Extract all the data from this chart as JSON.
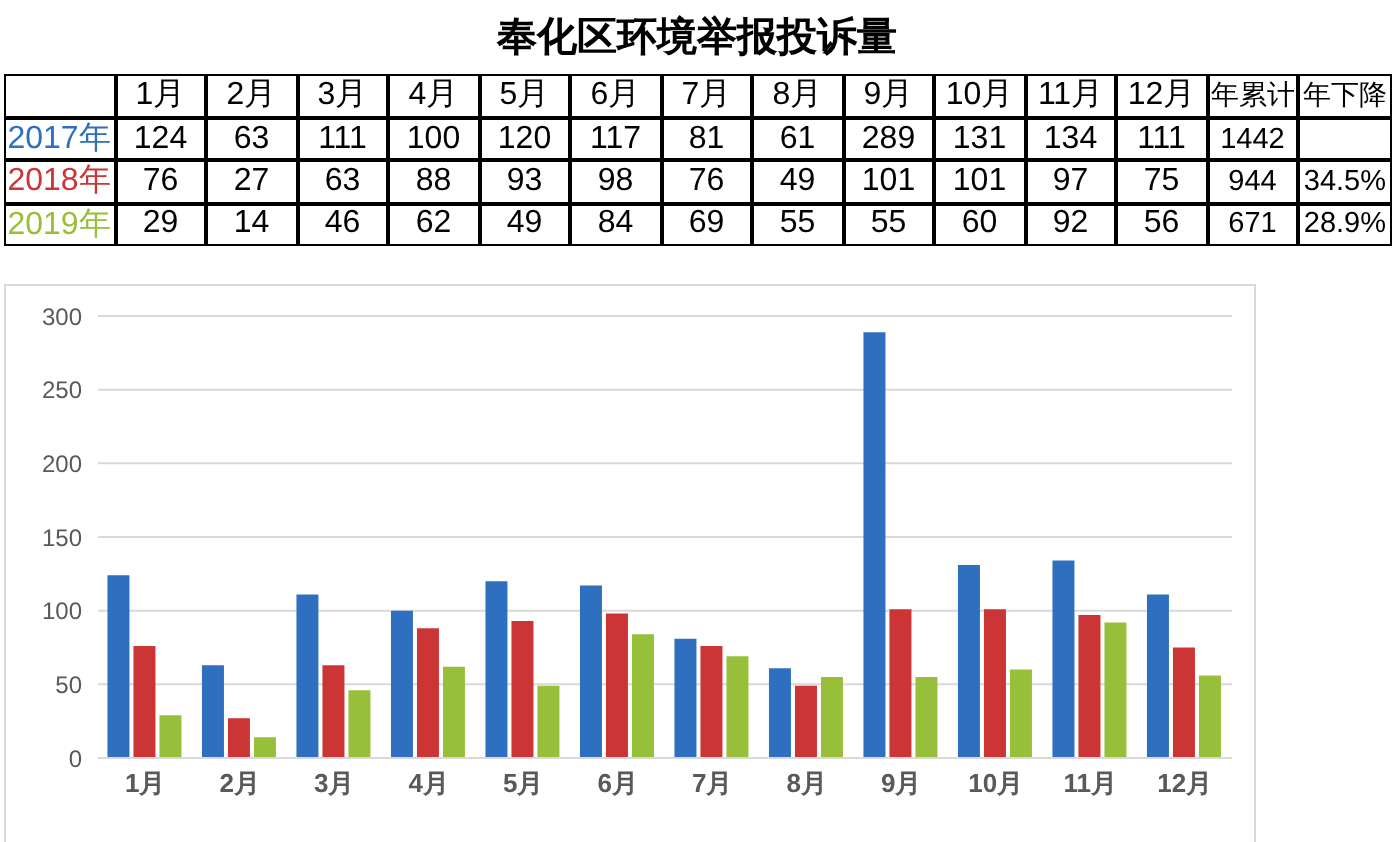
{
  "chart_data": {
    "type": "bar",
    "title": "奉化区环境举报投诉量",
    "categories": [
      "1月",
      "2月",
      "3月",
      "4月",
      "5月",
      "6月",
      "7月",
      "8月",
      "9月",
      "10月",
      "11月",
      "12月"
    ],
    "series": [
      {
        "name": "2017年",
        "color": "#2f6fc0",
        "values": [
          124,
          63,
          111,
          100,
          120,
          117,
          81,
          61,
          289,
          131,
          134,
          111
        ]
      },
      {
        "name": "2018年",
        "color": "#cc3535",
        "values": [
          76,
          27,
          63,
          88,
          93,
          98,
          76,
          49,
          101,
          101,
          97,
          75
        ]
      },
      {
        "name": "2019年",
        "color": "#98bf3a",
        "values": [
          29,
          14,
          46,
          62,
          49,
          84,
          69,
          55,
          55,
          60,
          92,
          56
        ]
      }
    ],
    "ylim": [
      0,
      300
    ],
    "yticks": [
      0,
      50,
      100,
      150,
      200,
      250,
      300
    ],
    "grid": "y",
    "data_labels": true,
    "annotations": [
      "年累计",
      "年下降",
      "1442",
      "944",
      "671",
      "34.5%",
      "28.9%"
    ]
  }
}
